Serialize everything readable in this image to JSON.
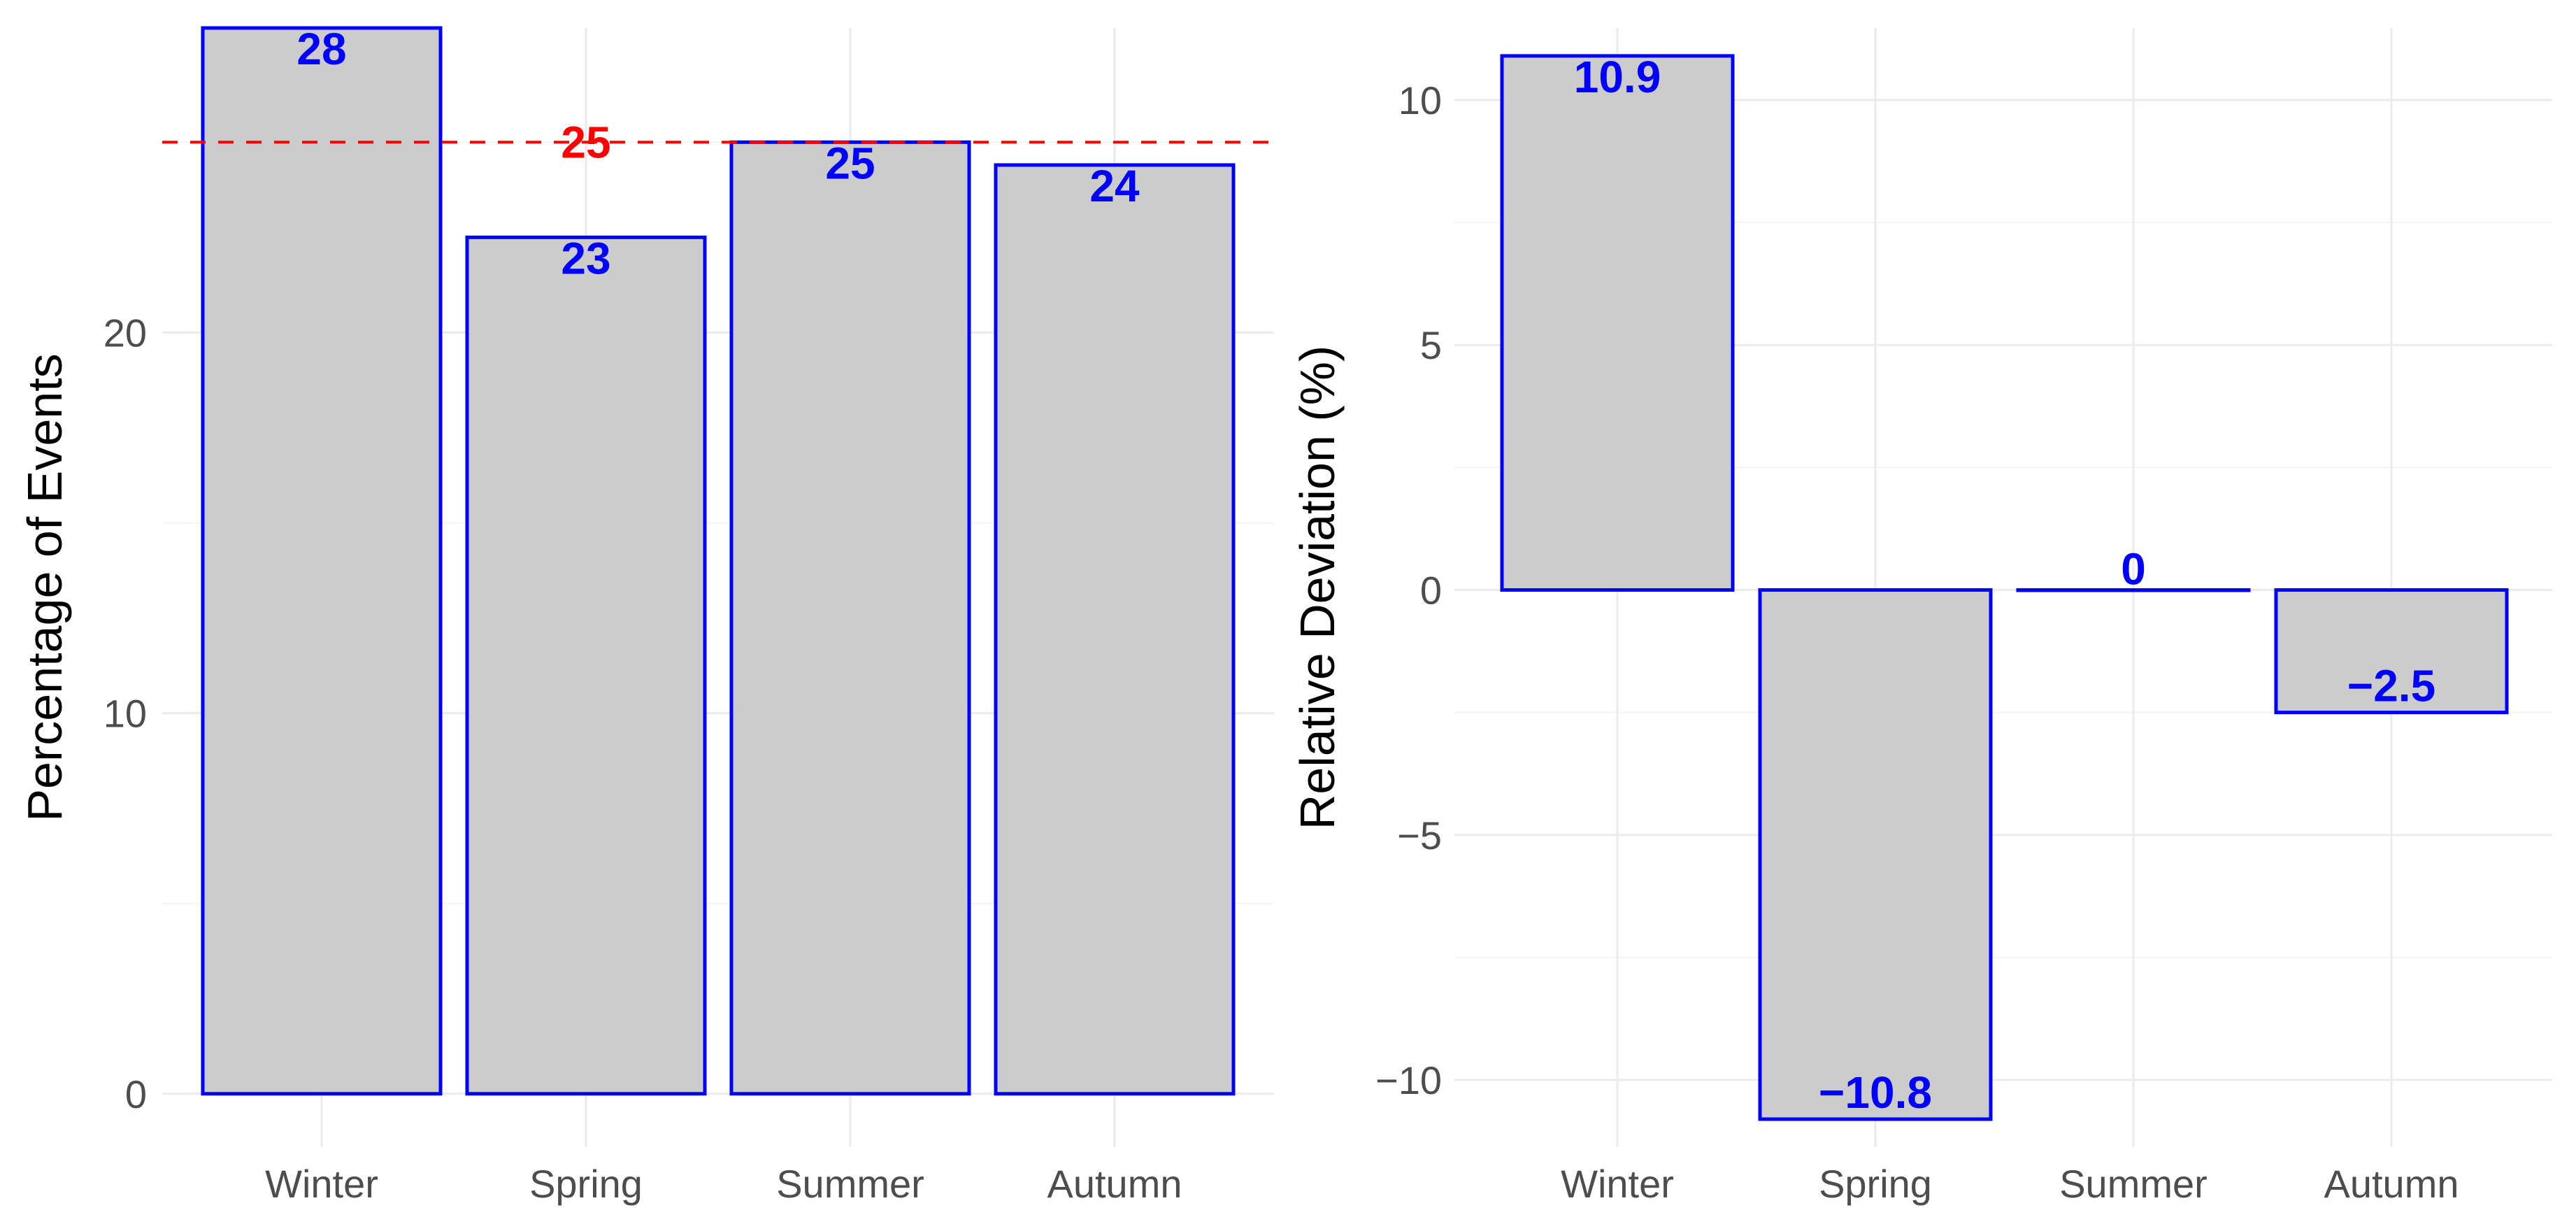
{
  "chart_data": [
    {
      "type": "bar",
      "categories": [
        "Winter",
        "Spring",
        "Summer",
        "Autumn"
      ],
      "values": [
        28.0,
        22.5,
        25.0,
        24.4
      ],
      "data_labels": [
        "28",
        "23",
        "25",
        "24"
      ],
      "ylabel": "Percentage of Events",
      "xlabel": "",
      "ylim": [
        0,
        28
      ],
      "yticks": [
        0,
        10,
        20
      ],
      "y_minor_ticks": [
        5,
        15,
        25
      ],
      "reference_line": {
        "value": 25,
        "label": "25",
        "color": "#ff0000",
        "style": "dashed"
      },
      "bar_fill": "#cccccc",
      "bar_outline": "#0000ff",
      "label_color": "#0000ff",
      "grid": true,
      "legend": "none"
    },
    {
      "type": "bar",
      "categories": [
        "Winter",
        "Spring",
        "Summer",
        "Autumn"
      ],
      "values": [
        10.9,
        -10.8,
        0,
        -2.5
      ],
      "data_labels": [
        "10.9",
        "−10.8",
        "0",
        "−2.5"
      ],
      "ylabel": "Relative Deviation (%)",
      "xlabel": "",
      "ylim": [
        -10.8,
        10.9
      ],
      "yticks": [
        -10,
        -5,
        0,
        5,
        10
      ],
      "ytick_labels": [
        "−10",
        "−5",
        "0",
        "5",
        "10"
      ],
      "y_minor_ticks": [
        -7.5,
        -2.5,
        2.5,
        7.5
      ],
      "bar_fill": "#cccccc",
      "bar_outline": "#0000ff",
      "label_color": "#0000ff",
      "grid": true,
      "legend": "none"
    }
  ]
}
